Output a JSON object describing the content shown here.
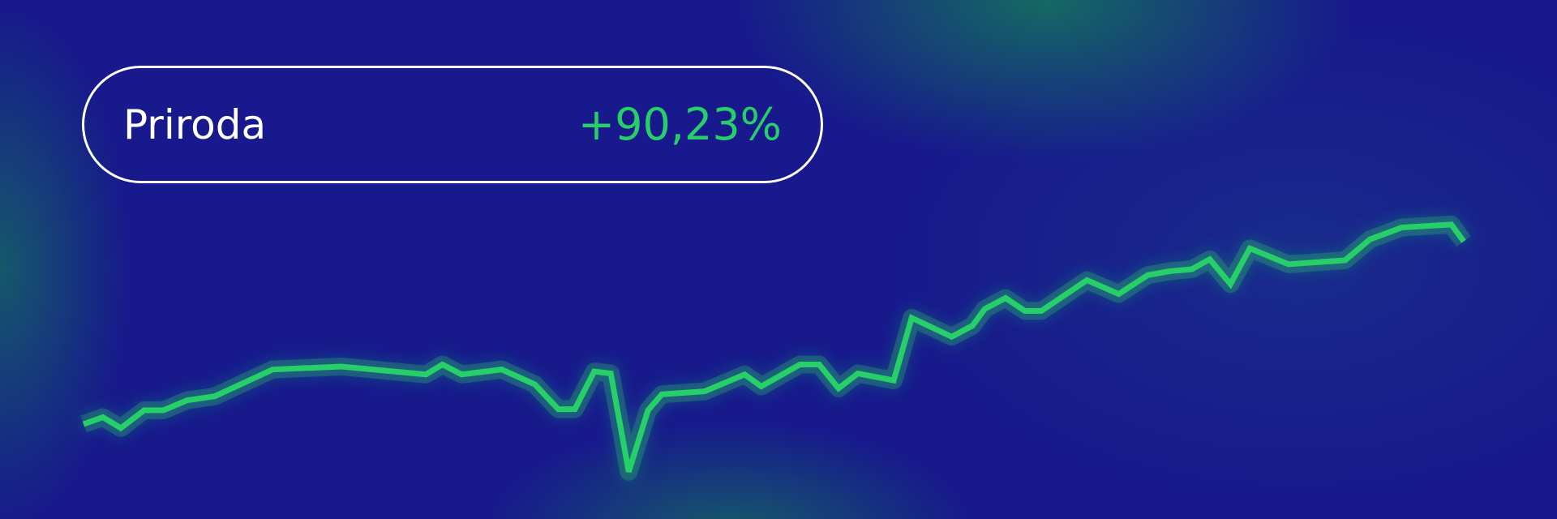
{
  "card": {
    "name": "Priroda",
    "change": "+90,23%"
  },
  "colors": {
    "background": "#17198c",
    "line": "#27cf69",
    "text": "#ffffff",
    "glow": "#14785a"
  },
  "chart_data": {
    "type": "line",
    "title": "",
    "xlabel": "",
    "ylabel": "",
    "axes_visible": false,
    "grid": false,
    "x": [
      0,
      1.4,
      2.7,
      4.4,
      5.8,
      7.5,
      9.5,
      13.7,
      18.7,
      24.8,
      26.0,
      27.4,
      30.3,
      32.7,
      34.4,
      35.6,
      37.0,
      38.2,
      39.5,
      40.9,
      41.9,
      45.0,
      47.9,
      49.1,
      51.9,
      53.3,
      54.7,
      56.1,
      58.7,
      60.0,
      62.9,
      64.4,
      65.3,
      66.8,
      68.2,
      69.4,
      72.7,
      75.0,
      77.1,
      78.7,
      80.3,
      81.6,
      83.1,
      84.5,
      87.3,
      91.4,
      93.2,
      95.5,
      99.1,
      100
    ],
    "series": [
      {
        "values": [
          0,
          3.43,
          -1.96,
          6.87,
          6.87,
          11.77,
          13.73,
          26.97,
          28.44,
          24.52,
          29.42,
          24.52,
          26.97,
          19.62,
          7.36,
          7.36,
          25.99,
          25.01,
          -23.54,
          6.87,
          14.71,
          16.18,
          24.52,
          18.64,
          29.42,
          29.42,
          17.65,
          25.01,
          21.58,
          52.47,
          43.16,
          48.55,
          56.89,
          62.28,
          55.91,
          55.91,
          71.11,
          64.24,
          73.56,
          75.52,
          76.5,
          81.41,
          69.15,
          86.8,
          78.95,
          80.92,
          91.21,
          97.1,
          98.57,
          90.23
        ]
      }
    ]
  }
}
